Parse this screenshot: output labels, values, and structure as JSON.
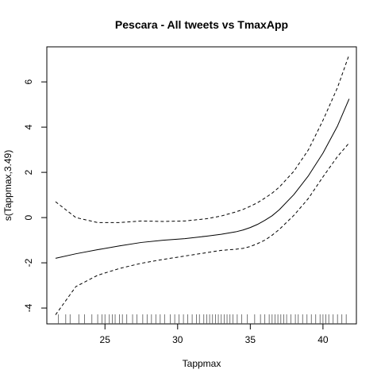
{
  "chart_data": {
    "type": "line",
    "title": "Pescara - All tweets vs TmaxApp",
    "xlabel": "Tappmax",
    "ylabel": "s(Tappmax,3.49)",
    "xlim": [
      21.0,
      42.3
    ],
    "ylim": [
      -4.7,
      7.55
    ],
    "grid": false,
    "legend": "none",
    "x_ticks": [
      25,
      30,
      35,
      40
    ],
    "y_ticks": [
      -4,
      -2,
      0,
      2,
      4,
      6
    ],
    "x": [
      21.6,
      23,
      24.5,
      26,
      27.5,
      29,
      30.5,
      32,
      33,
      34,
      34.5,
      35,
      35.5,
      36,
      36.5,
      37,
      38,
      39,
      40,
      41,
      41.8
    ],
    "series": [
      {
        "values": [
          -1.8,
          -1.6,
          -1.42,
          -1.25,
          -1.1,
          -1.0,
          -0.93,
          -0.82,
          -0.74,
          -0.63,
          -0.55,
          -0.44,
          -0.3,
          -0.12,
          0.08,
          0.35,
          1.02,
          1.85,
          2.85,
          4.05,
          5.25
        ]
      },
      {
        "values": [
          0.7,
          0.0,
          -0.22,
          -0.22,
          -0.15,
          -0.17,
          -0.15,
          -0.05,
          0.07,
          0.25,
          0.36,
          0.5,
          0.66,
          0.86,
          1.08,
          1.35,
          2.05,
          3.0,
          4.3,
          5.75,
          7.2
        ]
      },
      {
        "values": [
          -4.3,
          -3.05,
          -2.55,
          -2.25,
          -2.02,
          -1.85,
          -1.7,
          -1.55,
          -1.45,
          -1.4,
          -1.36,
          -1.28,
          -1.15,
          -1.0,
          -0.78,
          -0.52,
          0.1,
          0.85,
          1.8,
          2.7,
          3.3
        ]
      }
    ],
    "rug": [
      21.8,
      22.3,
      22.6,
      23.2,
      23.6,
      24.1,
      24.5,
      24.8,
      25.0,
      25.3,
      25.5,
      25.7,
      26.0,
      26.2,
      26.5,
      26.9,
      27.2,
      27.6,
      27.9,
      28.2,
      28.5,
      28.8,
      29.1,
      29.5,
      29.8,
      30.1,
      30.4,
      30.7,
      31.0,
      31.3,
      31.5,
      31.8,
      32.0,
      32.2,
      32.4,
      32.6,
      32.8,
      33.0,
      33.2,
      33.4,
      33.6,
      33.8,
      34.1,
      34.4,
      34.8,
      35.3,
      35.7,
      36.0,
      36.3,
      36.5,
      36.7,
      36.9,
      37.1,
      37.3,
      37.5,
      37.8,
      38.1,
      38.3,
      38.6,
      38.9,
      39.2,
      39.5,
      39.8,
      40.0,
      40.2,
      40.4,
      40.7,
      41.0,
      41.3,
      41.6
    ]
  }
}
